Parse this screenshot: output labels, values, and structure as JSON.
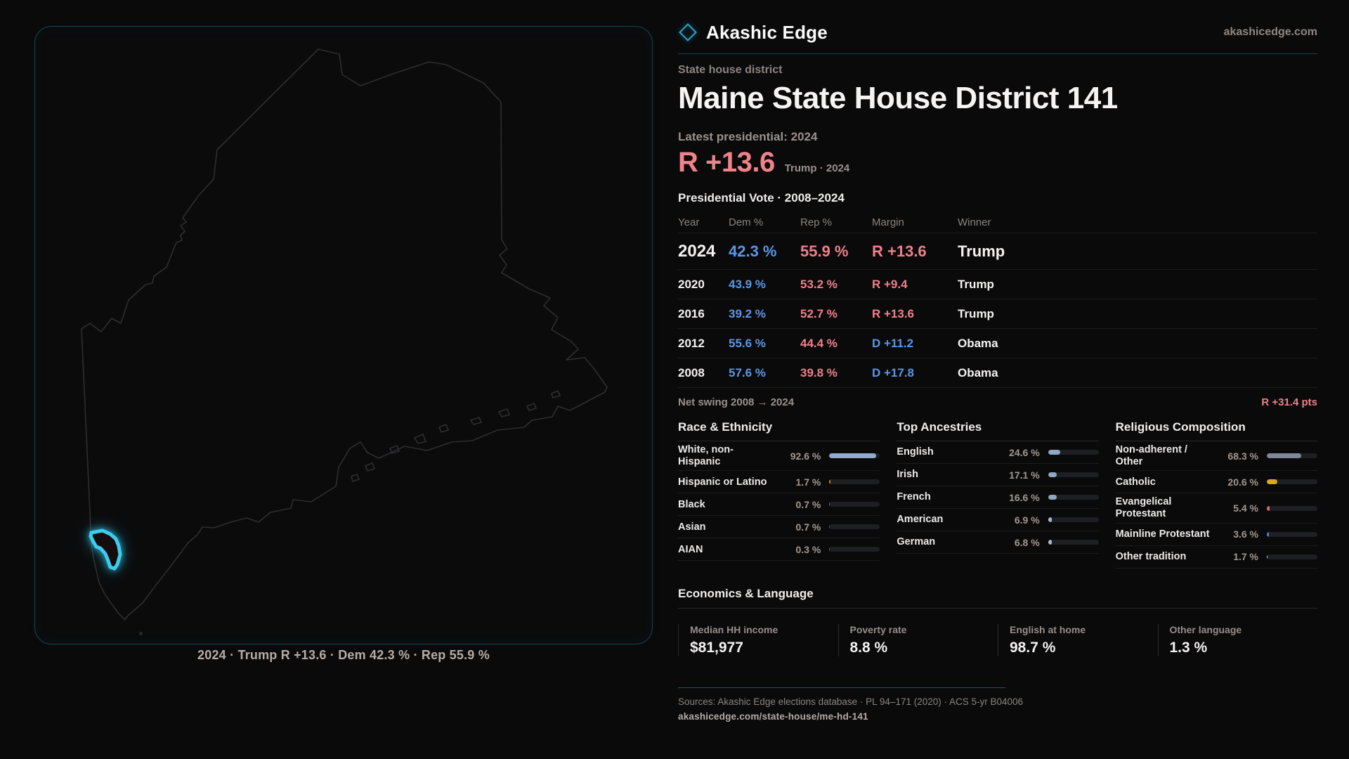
{
  "brand": {
    "name": "Akashic Edge",
    "domain": "akashicedge.com",
    "accent_teal": "#2bb3d4"
  },
  "page": {
    "kicker": "State house district",
    "title": "Maine State House District 141"
  },
  "hero": {
    "label": "Latest presidential: 2024",
    "value": "R +13.6",
    "sub": "Trump · 2024",
    "color": "#f0828a"
  },
  "vote_table": {
    "title": "Presidential Vote · 2008–2024",
    "columns": [
      "Year",
      "Dem %",
      "Rep %",
      "Margin",
      "Winner"
    ],
    "colors": {
      "dem": "#5b97e8",
      "rep": "#f0808a"
    },
    "rows": [
      {
        "year": "2024",
        "dem": "42.3 %",
        "rep": "55.9 %",
        "margin": "R +13.6",
        "winner": "Trump",
        "featured": true
      },
      {
        "year": "2020",
        "dem": "43.9 %",
        "rep": "53.2 %",
        "margin": "R +9.4",
        "winner": "Trump",
        "featured": false
      },
      {
        "year": "2016",
        "dem": "39.2 %",
        "rep": "52.7 %",
        "margin": "R +13.6",
        "winner": "Trump",
        "featured": false
      },
      {
        "year": "2012",
        "dem": "55.6 %",
        "rep": "44.4 %",
        "margin": "D +11.2",
        "winner": "Obama",
        "featured": false
      },
      {
        "year": "2008",
        "dem": "57.6 %",
        "rep": "39.8 %",
        "margin": "D +17.8",
        "winner": "Obama",
        "featured": false
      }
    ]
  },
  "net_swing": {
    "label": "Net swing 2008 → 2024",
    "value": "R +31.4 pts",
    "color": "#f0808a"
  },
  "demographics": {
    "sections": [
      {
        "title": "Race & Ethnicity",
        "rows": [
          {
            "label": "White, non-Hispanic",
            "value": "92.6 %",
            "pct": 92.6,
            "color": "#93aacb"
          },
          {
            "label": "Hispanic or Latino",
            "value": "1.7 %",
            "pct": 1.7,
            "color": "#c9892e"
          },
          {
            "label": "Black",
            "value": "0.7 %",
            "pct": 0.7,
            "color": "#7b6fe0"
          },
          {
            "label": "Asian",
            "value": "0.7 %",
            "pct": 0.7,
            "color": "#55606e"
          },
          {
            "label": "AIAN",
            "value": "0.3 %",
            "pct": 0.3,
            "color": "#55606e"
          }
        ]
      },
      {
        "title": "Top Ancestries",
        "rows": [
          {
            "label": "English",
            "value": "24.6 %",
            "pct": 24.6,
            "color": "#8fa8c6"
          },
          {
            "label": "Irish",
            "value": "17.1 %",
            "pct": 17.1,
            "color": "#8fa8c6"
          },
          {
            "label": "French",
            "value": "16.6 %",
            "pct": 16.6,
            "color": "#8fa8c6"
          },
          {
            "label": "American",
            "value": "6.9 %",
            "pct": 6.9,
            "color": "#a9bcd4"
          },
          {
            "label": "German",
            "value": "6.8 %",
            "pct": 6.8,
            "color": "#a9bcd4"
          }
        ]
      },
      {
        "title": "Religious Composition",
        "rows": [
          {
            "label": "Non-adherent / Other",
            "value": "68.3 %",
            "pct": 68.3,
            "color": "#7e8798"
          },
          {
            "label": "Catholic",
            "value": "20.6 %",
            "pct": 20.6,
            "color": "#d9a825"
          },
          {
            "label": "Evangelical Protestant",
            "value": "5.4 %",
            "pct": 5.4,
            "color": "#d96a6a"
          },
          {
            "label": "Mainline Protestant",
            "value": "3.6 %",
            "pct": 3.6,
            "color": "#4d84dd"
          },
          {
            "label": "Other tradition",
            "value": "1.7 %",
            "pct": 1.7,
            "color": "#d5d5d5"
          }
        ]
      }
    ]
  },
  "economics": {
    "title": "Economics & Language",
    "stats": [
      {
        "label": "Median HH income",
        "value": "$81,977"
      },
      {
        "label": "Poverty rate",
        "value": "8.8 %"
      },
      {
        "label": "English at home",
        "value": "98.7 %"
      },
      {
        "label": "Other language",
        "value": "1.3 %"
      }
    ]
  },
  "map": {
    "caption": "2024 · Trump R +13.6 · Dem 42.3 % · Rep 55.9 %",
    "district_outline_color": "#3ecbee"
  },
  "footer": {
    "sources": "Sources: Akashic Edge elections database · PL 94–171 (2020) · ACS 5-yr B04006",
    "permalink": "akashicedge.com/state-house/me-hd-141"
  },
  "chart_data": [
    {
      "type": "table",
      "title": "Presidential Vote · 2008–2024",
      "columns": [
        "Year",
        "Dem %",
        "Rep %",
        "Margin",
        "Winner"
      ],
      "rows": [
        [
          2024,
          42.3,
          55.9,
          "R +13.6",
          "Trump"
        ],
        [
          2020,
          43.9,
          53.2,
          "R +9.4",
          "Trump"
        ],
        [
          2016,
          39.2,
          52.7,
          "R +13.6",
          "Trump"
        ],
        [
          2012,
          55.6,
          44.4,
          "D +11.2",
          "Obama"
        ],
        [
          2008,
          57.6,
          39.8,
          "D +17.8",
          "Obama"
        ]
      ]
    },
    {
      "type": "bar",
      "title": "Race & Ethnicity",
      "categories": [
        "White, non-Hispanic",
        "Hispanic or Latino",
        "Black",
        "Asian",
        "AIAN"
      ],
      "values": [
        92.6,
        1.7,
        0.7,
        0.7,
        0.3
      ],
      "xlim": [
        0,
        100
      ],
      "unit": "%"
    },
    {
      "type": "bar",
      "title": "Top Ancestries",
      "categories": [
        "English",
        "Irish",
        "French",
        "American",
        "German"
      ],
      "values": [
        24.6,
        17.1,
        16.6,
        6.9,
        6.8
      ],
      "xlim": [
        0,
        100
      ],
      "unit": "%"
    },
    {
      "type": "bar",
      "title": "Religious Composition",
      "categories": [
        "Non-adherent / Other",
        "Catholic",
        "Evangelical Protestant",
        "Mainline Protestant",
        "Other tradition"
      ],
      "values": [
        68.3,
        20.6,
        5.4,
        3.6,
        1.7
      ],
      "xlim": [
        0,
        100
      ],
      "unit": "%"
    }
  ]
}
